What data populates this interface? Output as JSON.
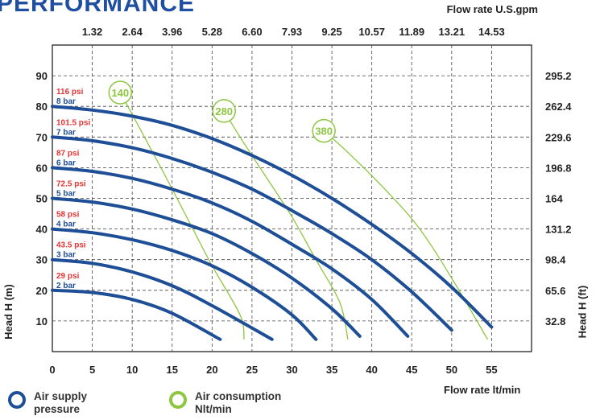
{
  "header": {
    "title": "PERFORMANCE"
  },
  "chart_data": {
    "type": "line",
    "x_label": "Flow rate  lt/min",
    "x_ticks": [
      0,
      5,
      10,
      15,
      20,
      25,
      30,
      35,
      40,
      45,
      50,
      55
    ],
    "x_range": [
      0,
      60
    ],
    "y_label": "Head H (m)",
    "y_ticks": [
      10,
      20,
      30,
      40,
      50,
      60,
      70,
      80,
      90
    ],
    "y_range": [
      0,
      100
    ],
    "top_axis_label": "Flow rate U.S.gpm",
    "top_ticks": [
      "1.32",
      "2.64",
      "3.96",
      "5.28",
      "6.60",
      "7.93",
      "9.25",
      "10.57",
      "11.89",
      "13.21",
      "14.53"
    ],
    "right_axis_label": "Head H (ft)",
    "right_ticks": [
      "32.8",
      "65.6",
      "98.4",
      "131.2",
      "164",
      "196.8",
      "229.6",
      "262.4",
      "295.2"
    ],
    "grid": "dashed",
    "pressure_series": [
      {
        "psi": "29 psi",
        "bar": "2 bar",
        "points": [
          [
            0,
            20
          ],
          [
            5,
            19.3
          ],
          [
            10,
            17
          ],
          [
            15,
            12.5
          ],
          [
            21,
            4
          ]
        ]
      },
      {
        "psi": "43.5 psi",
        "bar": "3 bar",
        "points": [
          [
            0,
            30
          ],
          [
            5,
            28.8
          ],
          [
            10,
            26
          ],
          [
            15,
            21.5
          ],
          [
            20,
            15
          ],
          [
            27.5,
            4
          ]
        ]
      },
      {
        "psi": "58 psi",
        "bar": "4 bar",
        "points": [
          [
            0,
            40
          ],
          [
            5,
            38.8
          ],
          [
            10,
            36.5
          ],
          [
            15,
            33
          ],
          [
            20,
            28
          ],
          [
            25,
            21
          ],
          [
            30,
            12
          ],
          [
            33,
            4
          ]
        ]
      },
      {
        "psi": "72.5 psi",
        "bar": "5 bar",
        "points": [
          [
            0,
            50
          ],
          [
            5,
            48.8
          ],
          [
            10,
            46.5
          ],
          [
            15,
            43
          ],
          [
            20,
            38.5
          ],
          [
            25,
            32
          ],
          [
            30,
            24
          ],
          [
            35,
            14
          ],
          [
            38.5,
            5
          ]
        ]
      },
      {
        "psi": "87 psi",
        "bar": "6 bar",
        "points": [
          [
            0,
            60
          ],
          [
            5,
            58.8
          ],
          [
            10,
            56.5
          ],
          [
            15,
            53
          ],
          [
            20,
            48.5
          ],
          [
            25,
            42.5
          ],
          [
            30,
            35
          ],
          [
            35,
            27
          ],
          [
            40,
            17
          ],
          [
            44.5,
            5
          ]
        ]
      },
      {
        "psi": "101.5 psi",
        "bar": "7 bar",
        "points": [
          [
            0,
            70
          ],
          [
            5,
            68.8
          ],
          [
            10,
            66.5
          ],
          [
            15,
            63
          ],
          [
            20,
            58.5
          ],
          [
            25,
            53
          ],
          [
            30,
            46
          ],
          [
            35,
            38.5
          ],
          [
            40,
            30
          ],
          [
            45,
            19.5
          ],
          [
            50,
            7
          ]
        ]
      },
      {
        "psi": "116 psi",
        "bar": "8 bar",
        "points": [
          [
            0,
            80
          ],
          [
            5,
            78.8
          ],
          [
            10,
            76.8
          ],
          [
            15,
            73.8
          ],
          [
            20,
            69.5
          ],
          [
            25,
            64
          ],
          [
            30,
            57.5
          ],
          [
            35,
            50
          ],
          [
            40,
            41.5
          ],
          [
            45,
            32
          ],
          [
            50,
            21
          ],
          [
            55,
            8
          ]
        ]
      }
    ],
    "air_consumption_series": [
      {
        "label": "140",
        "points": [
          [
            8.5,
            84.5
          ],
          [
            10.5,
            75
          ],
          [
            14,
            58
          ],
          [
            17,
            43
          ],
          [
            20,
            28
          ],
          [
            23.5,
            12
          ],
          [
            24,
            4
          ]
        ]
      },
      {
        "label": "280",
        "points": [
          [
            21.5,
            78.5
          ],
          [
            23.5,
            70
          ],
          [
            27,
            56
          ],
          [
            30,
            44
          ],
          [
            33,
            30
          ],
          [
            36,
            16
          ],
          [
            37,
            4
          ]
        ]
      },
      {
        "label": "380",
        "points": [
          [
            34,
            72
          ],
          [
            37,
            65
          ],
          [
            42,
            52
          ],
          [
            46,
            40
          ],
          [
            50,
            24
          ],
          [
            54.5,
            4
          ]
        ]
      }
    ],
    "colors": {
      "pressure": "#1d4e96",
      "air": "#8dc63f",
      "psi_label": "#e63333",
      "bar_label": "#1d4e96",
      "grid": "#444444"
    }
  },
  "legend": {
    "pressure": {
      "label": "Air supply pressure",
      "color": "#1d4e96"
    },
    "air": {
      "label": "Air consumption Nlt/min",
      "color": "#8dc63f"
    }
  }
}
